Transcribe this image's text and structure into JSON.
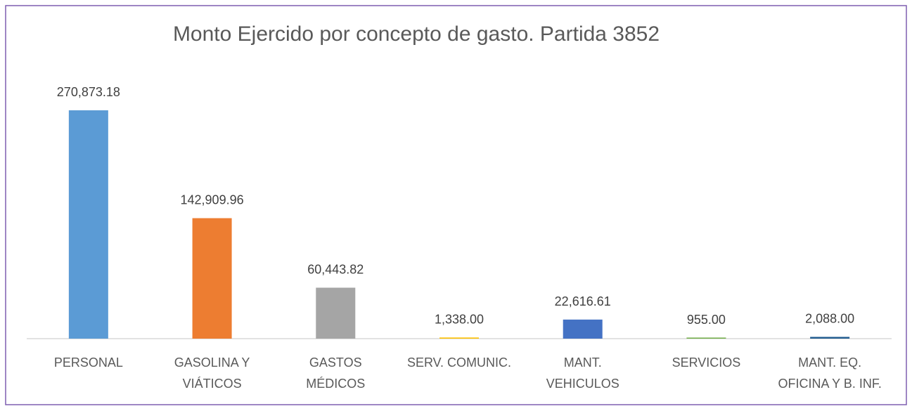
{
  "chart_data": {
    "type": "bar",
    "title": "Monto Ejercido por concepto de gasto. Partida 3852",
    "categories": [
      "PERSONAL",
      "GASOLINA Y\nVIÁTICOS",
      "GASTOS\nMÉDICOS",
      "SERV. COMUNIC.",
      "MANT.\nVEHICULOS",
      "SERVICIOS",
      "MANT. EQ.\nOFICINA Y B. INF."
    ],
    "values": [
      270873.18,
      142909.96,
      60443.82,
      1338,
      22616.61,
      955,
      2088
    ],
    "value_labels": [
      "270,873.18",
      "142,909.96",
      "60,443.82",
      "1,338.00",
      "22,616.61",
      "955.00",
      "2,088.00"
    ],
    "colors": [
      "#5b9bd5",
      "#ed7d31",
      "#a5a5a5",
      "#ffc000",
      "#4472c4",
      "#70ad47",
      "#255e91"
    ]
  }
}
